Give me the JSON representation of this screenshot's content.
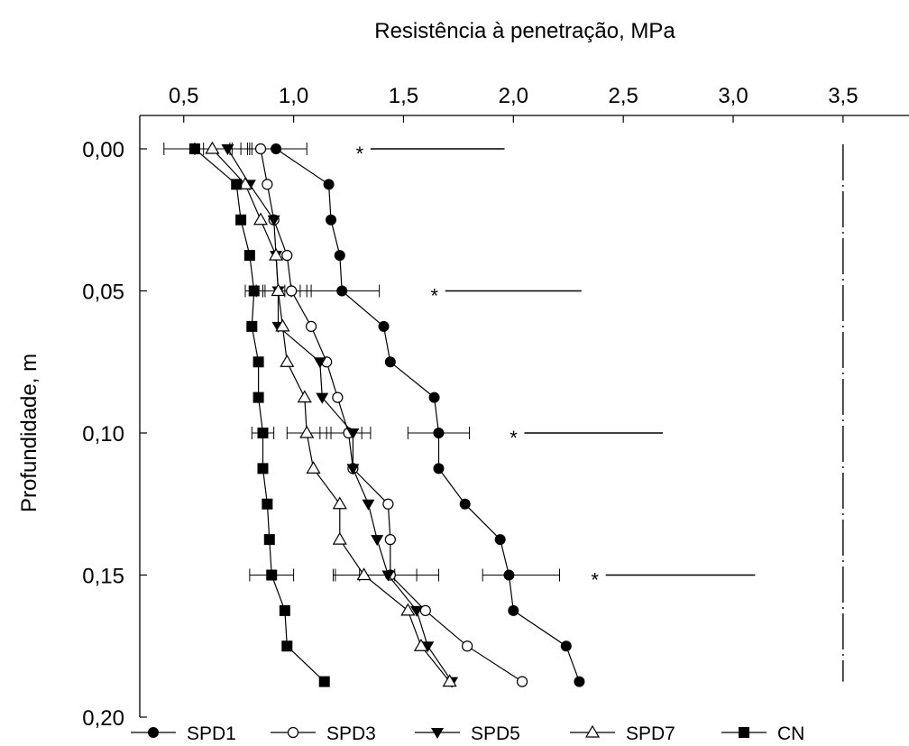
{
  "chart_data": {
    "type": "line",
    "title": "",
    "xlabel": "Resistência à penetração, MPa",
    "ylabel": "Profundidade, m",
    "x_axis_position": "top",
    "y_inverted": true,
    "xlim": [
      0.3,
      3.8
    ],
    "ylim": [
      0,
      0.2
    ],
    "x_ticks": [
      0.5,
      1.0,
      1.5,
      2.0,
      2.5,
      3.0,
      3.5
    ],
    "x_tick_labels": [
      "0,5",
      "1,0",
      "1,5",
      "2,0",
      "2,5",
      "3,0",
      "3,5"
    ],
    "y_ticks": [
      0,
      0.05,
      0.1,
      0.15,
      0.2
    ],
    "y_tick_labels": [
      "0,00",
      "0,05",
      "0,10",
      "0,15",
      "0,20"
    ],
    "grid": false,
    "legend_position": "bottom",
    "critical_line_x": 3.5,
    "y": [
      0.0,
      0.0125,
      0.025,
      0.0375,
      0.05,
      0.0625,
      0.075,
      0.0875,
      0.1,
      0.1125,
      0.125,
      0.1375,
      0.15,
      0.1625,
      0.175,
      0.1875
    ],
    "series": [
      {
        "name": "SPD1",
        "marker": "circle-filled",
        "values": [
          0.92,
          1.16,
          1.17,
          1.21,
          1.22,
          1.41,
          1.44,
          1.64,
          1.66,
          1.66,
          1.78,
          1.94,
          1.98,
          2.0,
          2.24,
          2.3
        ]
      },
      {
        "name": "SPD3",
        "marker": "circle-open",
        "values": [
          0.85,
          0.88,
          0.91,
          0.97,
          0.99,
          1.08,
          1.15,
          1.2,
          1.25,
          1.27,
          1.43,
          1.44,
          1.44,
          1.6,
          1.79,
          2.04
        ]
      },
      {
        "name": "SPD5",
        "marker": "triangle-down-filled",
        "values": [
          0.7,
          0.8,
          0.91,
          0.92,
          0.93,
          0.93,
          1.12,
          1.13,
          1.27,
          1.27,
          1.34,
          1.38,
          1.43,
          1.56,
          1.61,
          1.72
        ]
      },
      {
        "name": "SPD7",
        "marker": "triangle-up-open",
        "values": [
          0.63,
          0.78,
          0.85,
          0.92,
          0.93,
          0.95,
          0.97,
          1.05,
          1.06,
          1.09,
          1.21,
          1.21,
          1.32,
          1.52,
          1.58,
          1.71
        ]
      },
      {
        "name": "CN",
        "marker": "square-filled",
        "values": [
          0.55,
          0.74,
          0.76,
          0.8,
          0.82,
          0.81,
          0.84,
          0.84,
          0.86,
          0.86,
          0.88,
          0.89,
          0.9,
          0.96,
          0.97,
          1.14
        ]
      }
    ],
    "error_bars": [
      {
        "y": 0.0,
        "intervals": [
          [
            0.41,
            0.71
          ],
          [
            0.55,
            0.79
          ],
          [
            0.59,
            0.8
          ],
          [
            0.72,
            0.81
          ],
          [
            0.76,
            1.06
          ]
        ]
      },
      {
        "y": 0.05,
        "intervals": [
          [
            0.78,
            0.86
          ],
          [
            0.83,
            1.03
          ],
          [
            0.87,
            0.99
          ],
          [
            0.96,
            1.08
          ],
          [
            1.06,
            1.39
          ]
        ]
      },
      {
        "y": 0.1,
        "intervals": [
          [
            0.81,
            0.91
          ],
          [
            0.97,
            1.15
          ],
          [
            1.17,
            1.35
          ],
          [
            1.12,
            1.31
          ],
          [
            1.52,
            1.8
          ]
        ]
      },
      {
        "y": 0.15,
        "intervals": [
          [
            0.8,
            1.0
          ],
          [
            1.19,
            1.46
          ],
          [
            1.18,
            1.66
          ],
          [
            1.3,
            1.56
          ],
          [
            1.86,
            2.21
          ]
        ]
      }
    ],
    "significance": [
      {
        "y": 0.0,
        "label": "*",
        "x_from": 1.35,
        "x_to": 1.96
      },
      {
        "y": 0.05,
        "label": "*",
        "x_from": 1.69,
        "x_to": 2.31
      },
      {
        "y": 0.1,
        "label": "*",
        "x_from": 2.05,
        "x_to": 2.68
      },
      {
        "y": 0.15,
        "label": "*",
        "x_from": 2.42,
        "x_to": 3.1
      }
    ]
  }
}
